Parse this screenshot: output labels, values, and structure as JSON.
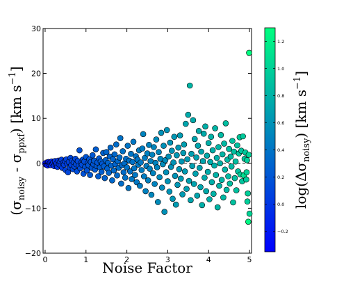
{
  "chart_data": {
    "type": "scatter",
    "xlabel": "Noise Factor",
    "ylabel_parts": {
      "open": "(σ",
      "sub1": "noisy",
      "mid": " - σ",
      "sub2": "ppxf",
      "close": ") [km s",
      "sup": "−1",
      "end": "]"
    },
    "colorbar_label_parts": {
      "open": "log(Δσ",
      "sub": "noisy",
      "mid": ") [km s",
      "sup": "−1",
      "end": "]"
    },
    "xlim": [
      -0.05,
      5.05
    ],
    "ylim": [
      -20,
      30
    ],
    "xticks": [
      0,
      1,
      2,
      3,
      4,
      5
    ],
    "yticks": [
      -20,
      -10,
      0,
      10,
      20,
      30
    ],
    "color_range": [
      -0.35,
      1.3
    ],
    "colorbar_ticks": [
      -0.2,
      0.0,
      0.2,
      0.4,
      0.6,
      0.8,
      1.0,
      1.2
    ],
    "colormap": [
      "#0000ff",
      "#00ff80"
    ],
    "reference_line_y": 0,
    "points": [
      [
        0.0,
        0.0,
        -0.25
      ],
      [
        0.02,
        -0.3,
        -0.22
      ],
      [
        0.04,
        0.2,
        -0.2
      ],
      [
        0.06,
        -0.5,
        -0.18
      ],
      [
        0.08,
        0.3,
        -0.2
      ],
      [
        0.1,
        -0.2,
        -0.15
      ],
      [
        0.12,
        0.1,
        -0.12
      ],
      [
        0.14,
        -0.4,
        -0.1
      ],
      [
        0.16,
        0.4,
        -0.1
      ],
      [
        0.18,
        -0.1,
        -0.08
      ],
      [
        0.2,
        0.2,
        -0.05
      ],
      [
        0.22,
        -0.6,
        -0.05
      ],
      [
        0.24,
        0.5,
        -0.02
      ],
      [
        0.26,
        -0.3,
        0.0
      ],
      [
        0.28,
        0.0,
        -0.03
      ],
      [
        0.3,
        -0.8,
        0.0
      ],
      [
        0.32,
        0.6,
        0.02
      ],
      [
        0.34,
        -0.2,
        0.02
      ],
      [
        0.36,
        0.3,
        0.05
      ],
      [
        0.38,
        -0.5,
        0.0
      ],
      [
        0.4,
        0.8,
        0.05
      ],
      [
        0.42,
        -1.0,
        0.05
      ],
      [
        0.44,
        0.1,
        0.03
      ],
      [
        0.46,
        -0.3,
        0.06
      ],
      [
        0.48,
        0.5,
        0.05
      ],
      [
        0.5,
        -1.5,
        0.08
      ],
      [
        0.52,
        0.9,
        0.08
      ],
      [
        0.54,
        -0.1,
        0.05
      ],
      [
        0.56,
        -2.0,
        0.1
      ],
      [
        0.58,
        0.3,
        0.08
      ],
      [
        0.6,
        -0.9,
        0.1
      ],
      [
        0.62,
        1.2,
        0.1
      ],
      [
        0.64,
        -0.4,
        0.08
      ],
      [
        0.66,
        0.6,
        0.1
      ],
      [
        0.68,
        -1.3,
        0.12
      ],
      [
        0.7,
        0.2,
        0.1
      ],
      [
        0.72,
        -0.7,
        0.12
      ],
      [
        0.74,
        1.0,
        0.1
      ],
      [
        0.76,
        -0.2,
        0.12
      ],
      [
        0.78,
        -1.8,
        0.15
      ],
      [
        0.8,
        0.5,
        0.12
      ],
      [
        0.82,
        -0.5,
        0.12
      ],
      [
        0.84,
        2.9,
        0.18
      ],
      [
        0.86,
        -1.1,
        0.15
      ],
      [
        0.88,
        0.1,
        0.12
      ],
      [
        0.9,
        -0.3,
        0.15
      ],
      [
        0.92,
        0.8,
        0.15
      ],
      [
        0.94,
        -2.3,
        0.18
      ],
      [
        0.96,
        0.4,
        0.15
      ],
      [
        0.98,
        -0.8,
        0.18
      ],
      [
        1.0,
        1.4,
        0.2
      ],
      [
        1.02,
        -1.6,
        0.18
      ],
      [
        1.04,
        0.0,
        0.15
      ],
      [
        1.06,
        -0.4,
        0.2
      ],
      [
        1.08,
        0.9,
        0.2
      ],
      [
        1.1,
        -2.6,
        0.22
      ],
      [
        1.12,
        0.3,
        0.2
      ],
      [
        1.14,
        -1.0,
        0.2
      ],
      [
        1.16,
        1.8,
        0.22
      ],
      [
        1.18,
        -0.2,
        0.2
      ],
      [
        1.2,
        0.6,
        0.22
      ],
      [
        1.22,
        -1.4,
        0.22
      ],
      [
        1.24,
        3.1,
        0.25
      ],
      [
        1.26,
        -0.6,
        0.22
      ],
      [
        1.28,
        0.2,
        0.2
      ],
      [
        1.3,
        -2.9,
        0.25
      ],
      [
        1.32,
        1.1,
        0.22
      ],
      [
        1.34,
        -0.9,
        0.25
      ],
      [
        1.36,
        0.4,
        0.25
      ],
      [
        1.38,
        -1.9,
        0.25
      ],
      [
        1.4,
        -0.1,
        0.22
      ],
      [
        1.42,
        2.3,
        0.28
      ],
      [
        1.44,
        -0.7,
        0.25
      ],
      [
        1.46,
        -3.3,
        0.28
      ],
      [
        1.48,
        0.7,
        0.28
      ],
      [
        1.5,
        2.5,
        0.3
      ],
      [
        1.52,
        -1.2,
        0.28
      ],
      [
        1.54,
        0.1,
        0.3
      ],
      [
        1.56,
        -2.1,
        0.3
      ],
      [
        1.58,
        1.5,
        0.3
      ],
      [
        1.6,
        3.5,
        0.32
      ],
      [
        1.62,
        -0.5,
        0.3
      ],
      [
        1.64,
        -3.8,
        0.32
      ],
      [
        1.66,
        0.9,
        0.3
      ],
      [
        1.68,
        -1.6,
        0.32
      ],
      [
        1.7,
        2.0,
        0.32
      ],
      [
        1.72,
        -0.2,
        0.3
      ],
      [
        1.74,
        4.2,
        0.35
      ],
      [
        1.76,
        -2.7,
        0.32
      ],
      [
        1.78,
        0.5,
        0.32
      ],
      [
        1.8,
        -1.0,
        0.35
      ],
      [
        1.82,
        1.3,
        0.35
      ],
      [
        1.84,
        5.6,
        0.38
      ],
      [
        1.86,
        -4.5,
        0.35
      ],
      [
        1.88,
        -0.4,
        0.32
      ],
      [
        1.9,
        2.7,
        0.38
      ],
      [
        1.92,
        -2.0,
        0.35
      ],
      [
        1.94,
        0.0,
        0.35
      ],
      [
        1.96,
        -3.2,
        0.38
      ],
      [
        1.98,
        1.0,
        0.35
      ],
      [
        2.0,
        -0.9,
        0.38
      ],
      [
        2.02,
        3.9,
        0.4
      ],
      [
        2.04,
        -5.5,
        0.4
      ],
      [
        2.06,
        0.6,
        0.38
      ],
      [
        2.08,
        -1.8,
        0.38
      ],
      [
        2.1,
        2.1,
        0.4
      ],
      [
        2.12,
        -3.5,
        0.42
      ],
      [
        2.14,
        0.3,
        0.38
      ],
      [
        2.16,
        4.8,
        0.42
      ],
      [
        2.18,
        -1.1,
        0.4
      ],
      [
        2.2,
        -2.6,
        0.42
      ],
      [
        2.22,
        1.6,
        0.4
      ],
      [
        2.24,
        -4.2,
        0.42
      ],
      [
        2.26,
        0.8,
        0.4
      ],
      [
        2.28,
        -0.3,
        0.42
      ],
      [
        2.3,
        2.9,
        0.45
      ],
      [
        2.32,
        -5.0,
        0.45
      ],
      [
        2.34,
        0.2,
        0.42
      ],
      [
        2.36,
        -1.5,
        0.45
      ],
      [
        2.38,
        3.3,
        0.45
      ],
      [
        2.4,
        6.5,
        0.5
      ],
      [
        2.42,
        -2.9,
        0.45
      ],
      [
        2.44,
        1.2,
        0.45
      ],
      [
        2.46,
        -6.2,
        0.48
      ],
      [
        2.48,
        -0.6,
        0.45
      ],
      [
        2.5,
        2.2,
        0.48
      ],
      [
        2.52,
        -3.8,
        0.48
      ],
      [
        2.54,
        4.1,
        0.5
      ],
      [
        2.56,
        -1.2,
        0.48
      ],
      [
        2.58,
        0.5,
        0.48
      ],
      [
        2.6,
        -7.0,
        0.52
      ],
      [
        2.62,
        1.9,
        0.5
      ],
      [
        2.64,
        -2.2,
        0.5
      ],
      [
        2.66,
        3.6,
        0.52
      ],
      [
        2.68,
        -4.6,
        0.5
      ],
      [
        2.7,
        0.1,
        0.5
      ],
      [
        2.72,
        5.3,
        0.55
      ],
      [
        2.74,
        -0.9,
        0.5
      ],
      [
        2.76,
        -8.6,
        0.55
      ],
      [
        2.78,
        2.5,
        0.52
      ],
      [
        2.8,
        -3.1,
        0.55
      ],
      [
        2.82,
        1.0,
        0.52
      ],
      [
        2.84,
        6.8,
        0.58
      ],
      [
        2.86,
        -5.4,
        0.55
      ],
      [
        2.88,
        -0.2,
        0.55
      ],
      [
        2.9,
        3.9,
        0.58
      ],
      [
        2.92,
        -10.8,
        0.58
      ],
      [
        2.94,
        0.7,
        0.55
      ],
      [
        2.96,
        -2.0,
        0.58
      ],
      [
        2.98,
        7.4,
        0.6
      ],
      [
        3.0,
        -4.0,
        0.6
      ],
      [
        3.02,
        1.5,
        0.58
      ],
      [
        3.04,
        -6.3,
        0.6
      ],
      [
        3.06,
        4.6,
        0.6
      ],
      [
        3.08,
        -0.8,
        0.58
      ],
      [
        3.1,
        2.8,
        0.6
      ],
      [
        3.12,
        -7.9,
        0.62
      ],
      [
        3.14,
        0.2,
        0.6
      ],
      [
        3.16,
        5.9,
        0.62
      ],
      [
        3.18,
        -2.8,
        0.6
      ],
      [
        3.2,
        -9.2,
        0.65
      ],
      [
        3.22,
        1.8,
        0.62
      ],
      [
        3.24,
        -4.8,
        0.62
      ],
      [
        3.26,
        3.5,
        0.62
      ],
      [
        3.28,
        -1.3,
        0.62
      ],
      [
        3.3,
        6.2,
        0.65
      ],
      [
        3.32,
        -3.4,
        0.65
      ],
      [
        3.34,
        0.4,
        0.62
      ],
      [
        3.36,
        -6.9,
        0.65
      ],
      [
        3.38,
        2.3,
        0.65
      ],
      [
        3.4,
        4.2,
        0.68
      ],
      [
        3.42,
        -1.8,
        0.65
      ],
      [
        3.44,
        8.8,
        0.72
      ],
      [
        3.46,
        -5.7,
        0.68
      ],
      [
        3.48,
        0.9,
        0.65
      ],
      [
        3.5,
        10.8,
        0.75
      ],
      [
        3.52,
        -3.9,
        0.68
      ],
      [
        3.54,
        17.3,
        0.82
      ],
      [
        3.56,
        -8.2,
        0.72
      ],
      [
        3.58,
        2.1,
        0.68
      ],
      [
        3.6,
        -0.6,
        0.68
      ],
      [
        3.62,
        9.6,
        0.75
      ],
      [
        3.64,
        -4.6,
        0.7
      ],
      [
        3.66,
        5.4,
        0.72
      ],
      [
        3.68,
        -2.3,
        0.7
      ],
      [
        3.7,
        1.3,
        0.7
      ],
      [
        3.72,
        -7.2,
        0.72
      ],
      [
        3.74,
        3.9,
        0.72
      ],
      [
        3.76,
        7.2,
        0.75
      ],
      [
        3.78,
        -1.0,
        0.7
      ],
      [
        3.8,
        -5.3,
        0.72
      ],
      [
        3.82,
        2.6,
        0.72
      ],
      [
        3.84,
        -9.3,
        0.78
      ],
      [
        3.86,
        0.5,
        0.72
      ],
      [
        3.88,
        6.6,
        0.75
      ],
      [
        3.9,
        -3.2,
        0.75
      ],
      [
        3.92,
        8.2,
        0.78
      ],
      [
        3.94,
        -6.2,
        0.75
      ],
      [
        3.96,
        1.7,
        0.75
      ],
      [
        3.98,
        -1.9,
        0.75
      ],
      [
        4.0,
        4.5,
        0.78
      ],
      [
        4.02,
        -8.0,
        0.78
      ],
      [
        4.04,
        0.3,
        0.75
      ],
      [
        4.06,
        5.9,
        0.8
      ],
      [
        4.08,
        -4.2,
        0.78
      ],
      [
        4.1,
        2.9,
        0.78
      ],
      [
        4.12,
        -6.8,
        0.8
      ],
      [
        4.14,
        -0.5,
        0.78
      ],
      [
        4.16,
        7.8,
        0.82
      ],
      [
        4.18,
        -2.6,
        0.8
      ],
      [
        4.2,
        1.2,
        0.78
      ],
      [
        4.22,
        -9.8,
        0.82
      ],
      [
        4.24,
        3.6,
        0.82
      ],
      [
        4.26,
        -5.0,
        0.8
      ],
      [
        4.28,
        0.0,
        0.8
      ],
      [
        4.3,
        6.3,
        0.85
      ],
      [
        4.32,
        -3.7,
        0.82
      ],
      [
        4.34,
        2.0,
        0.82
      ],
      [
        4.36,
        -7.6,
        0.85
      ],
      [
        4.38,
        4.4,
        0.85
      ],
      [
        4.4,
        -1.4,
        0.82
      ],
      [
        4.42,
        8.9,
        0.88
      ],
      [
        4.44,
        -5.9,
        0.85
      ],
      [
        4.46,
        0.8,
        0.85
      ],
      [
        4.48,
        -2.9,
        0.85
      ],
      [
        4.5,
        3.2,
        0.88
      ],
      [
        4.52,
        -4.5,
        0.88
      ],
      [
        4.54,
        1.5,
        0.85
      ],
      [
        4.56,
        -0.7,
        0.85
      ],
      [
        4.58,
        5.0,
        0.9
      ],
      [
        4.6,
        -8.7,
        0.9
      ],
      [
        4.62,
        2.6,
        0.88
      ],
      [
        4.64,
        -3.3,
        0.88
      ],
      [
        4.66,
        0.4,
        0.88
      ],
      [
        4.68,
        -6.0,
        0.9
      ],
      [
        4.7,
        4.0,
        0.9
      ],
      [
        4.72,
        -1.8,
        0.9
      ],
      [
        4.74,
        2.2,
        0.92
      ],
      [
        4.76,
        5.8,
        0.95
      ],
      [
        4.78,
        -2.5,
        0.98
      ],
      [
        4.8,
        2.8,
        0.92
      ],
      [
        4.82,
        -4.0,
        0.92
      ],
      [
        4.84,
        6.0,
        0.95
      ],
      [
        4.86,
        -2.7,
        1.1
      ],
      [
        4.88,
        1.0,
        0.92
      ],
      [
        4.9,
        2.4,
        0.95
      ],
      [
        4.92,
        -3.6,
        0.95
      ],
      [
        4.94,
        0.7,
        0.98
      ],
      [
        4.96,
        -6.7,
        0.98
      ],
      [
        4.98,
        1.9,
        1.0
      ],
      [
        5.0,
        -11.2,
        1.02
      ],
      [
        4.97,
        -13.0,
        1.25
      ],
      [
        4.99,
        24.6,
        1.3
      ],
      [
        4.95,
        -8.5,
        0.98
      ],
      [
        4.93,
        -2.0,
        1.0
      ]
    ]
  }
}
